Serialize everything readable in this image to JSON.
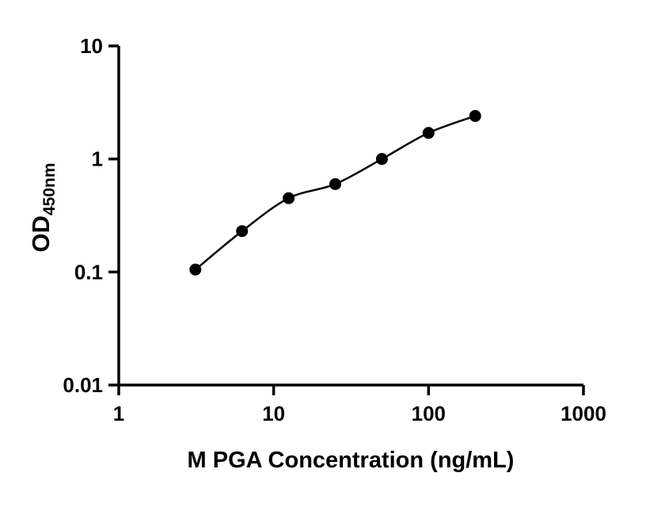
{
  "chart_data": {
    "type": "scatter",
    "title": "",
    "xlabel": "M PGA Concentration (ng/mL)",
    "ylabel_main": "OD",
    "ylabel_sub": "450nm",
    "x_scale": "log",
    "y_scale": "log",
    "xlim": [
      1,
      1000
    ],
    "ylim": [
      0.01,
      10
    ],
    "grid": false,
    "legend": false,
    "fit_line": true,
    "axis_color": "#000000",
    "line_color": "#000000",
    "marker_color": "#000000",
    "x_ticks": [
      {
        "value": 1,
        "label": "1"
      },
      {
        "value": 10,
        "label": "10"
      },
      {
        "value": 100,
        "label": "100"
      },
      {
        "value": 1000,
        "label": "1000"
      }
    ],
    "y_ticks": [
      {
        "value": 0.01,
        "label": "0.01"
      },
      {
        "value": 0.1,
        "label": "0.1"
      },
      {
        "value": 1,
        "label": "1"
      },
      {
        "value": 10,
        "label": "10"
      }
    ],
    "points": [
      {
        "x": 3.125,
        "y": 0.105
      },
      {
        "x": 6.25,
        "y": 0.23
      },
      {
        "x": 12.5,
        "y": 0.45
      },
      {
        "x": 25,
        "y": 0.6
      },
      {
        "x": 50,
        "y": 1.0
      },
      {
        "x": 100,
        "y": 1.7
      },
      {
        "x": 200,
        "y": 2.4
      }
    ]
  }
}
